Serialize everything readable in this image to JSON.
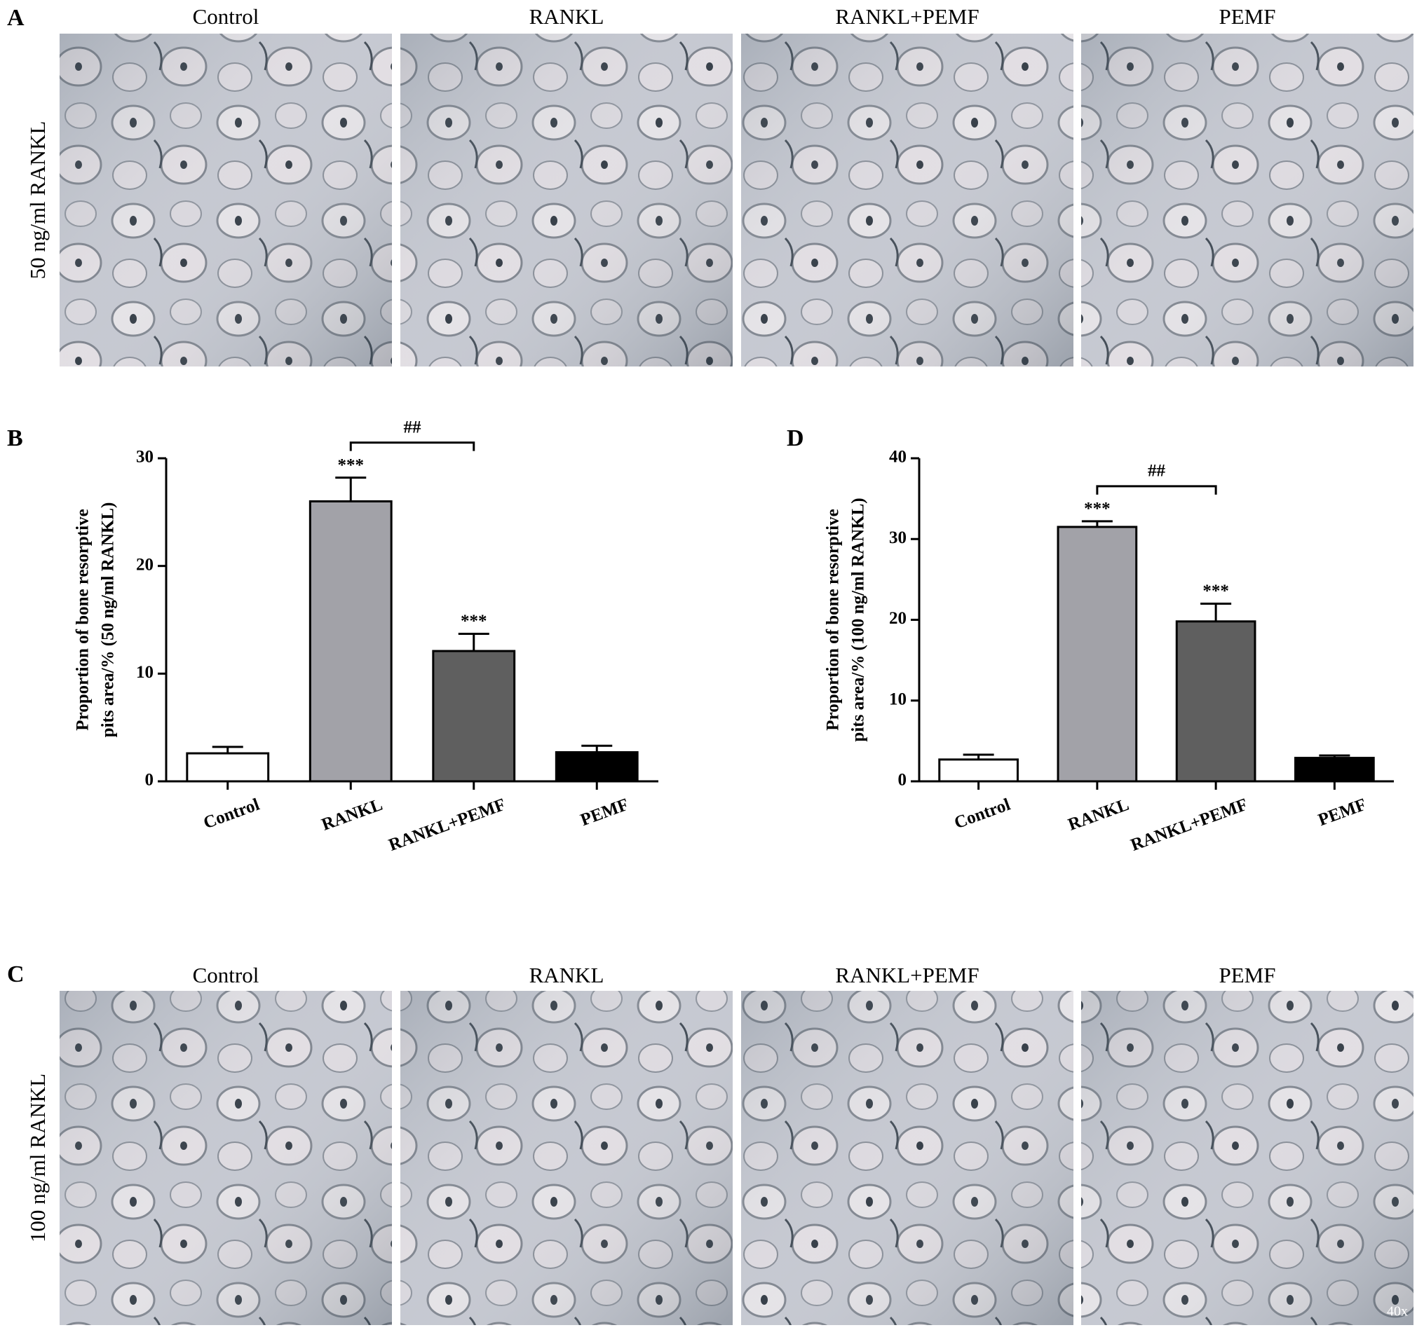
{
  "image_rows": [
    {
      "label": "A",
      "row_label": "50 ng/ml RANKL",
      "columns": [
        "Control",
        "RANKL",
        "RANKL+PEMF",
        "PEMF"
      ]
    },
    {
      "label": "C",
      "row_label": "100 ng/ml RANKL",
      "columns": [
        "Control",
        "RANKL",
        "RANKL+PEMF",
        "PEMF"
      ],
      "magnification": "40x"
    }
  ],
  "chart_data": [
    {
      "panel": "B",
      "type": "bar",
      "ylabel": [
        "Proportion of bone resorptive",
        "pits area/% (50 ng/ml RANKL)"
      ],
      "categories": [
        "Control",
        "RANKL",
        "RANKL+PEMF",
        "PEMF"
      ],
      "values": [
        2.6,
        26.0,
        12.1,
        2.7
      ],
      "errors": [
        0.6,
        2.2,
        1.6,
        0.6
      ],
      "colors": [
        "#ffffff",
        "#a2a2a8",
        "#5f5f5f",
        "#000000"
      ],
      "significance": [
        null,
        "***",
        "***",
        null
      ],
      "brackets": [
        {
          "between": [
            "RANKL",
            "RANKL+PEMF"
          ],
          "label": "##"
        }
      ],
      "ylim": [
        0,
        30
      ],
      "yticks": [
        0,
        10,
        20,
        30
      ]
    },
    {
      "panel": "D",
      "type": "bar",
      "ylabel": [
        "Proportion of bone resorptive",
        "pits area/% (100  ng/ml RANKL)"
      ],
      "categories": [
        "Control",
        "RANKL",
        "RANKL+PEMF",
        "PEMF"
      ],
      "values": [
        2.7,
        31.5,
        19.8,
        2.9
      ],
      "errors": [
        0.6,
        0.7,
        2.2,
        0.3
      ],
      "colors": [
        "#ffffff",
        "#a2a2a8",
        "#5f5f5f",
        "#000000"
      ],
      "significance": [
        null,
        "***",
        "***",
        null
      ],
      "brackets": [
        {
          "between": [
            "RANKL",
            "RANKL+PEMF"
          ],
          "label": "##"
        }
      ],
      "ylim": [
        0,
        40
      ],
      "yticks": [
        0,
        10,
        20,
        30,
        40
      ]
    }
  ]
}
